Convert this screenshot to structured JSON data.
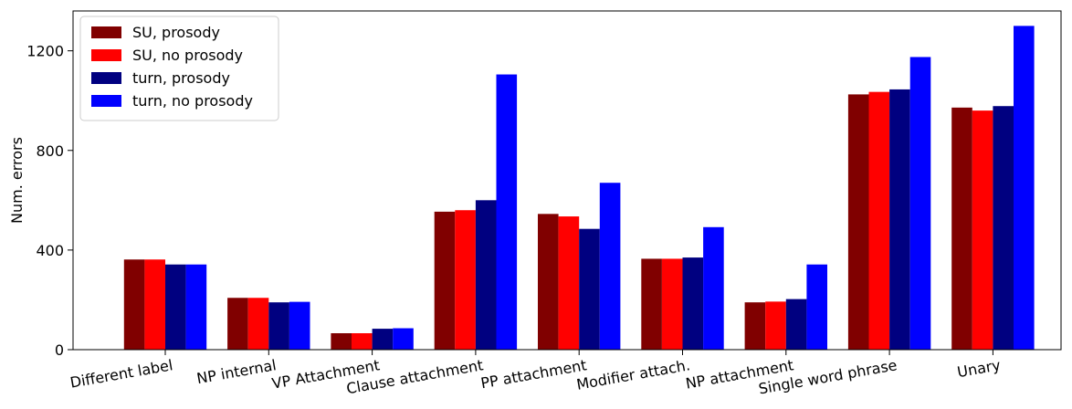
{
  "chart_data": {
    "type": "bar",
    "title": "",
    "xlabel": "",
    "ylabel": "Num. errors",
    "ylim": [
      0,
      1360
    ],
    "yticks": [
      0,
      400,
      800,
      1200
    ],
    "grid": false,
    "legend_position": "top-left",
    "categories": [
      "Different label",
      "NP internal",
      "VP Attachment",
      "Clause attachment",
      "PP attachment",
      "Modifier attach.",
      "NP attachment",
      "Single word phrase",
      "Unary"
    ],
    "series": [
      {
        "name": "SU, prosody",
        "color": "#800000",
        "values": [
          362,
          208,
          66,
          554,
          545,
          365,
          190,
          1025,
          972
        ]
      },
      {
        "name": "SU, no prosody",
        "color": "#ff0000",
        "values": [
          362,
          208,
          66,
          560,
          535,
          365,
          193,
          1035,
          960
        ]
      },
      {
        "name": "turn, prosody",
        "color": "#000080",
        "values": [
          342,
          190,
          84,
          600,
          485,
          370,
          203,
          1045,
          978
        ]
      },
      {
        "name": "turn, no prosody",
        "color": "#0000ff",
        "values": [
          342,
          192,
          86,
          1105,
          670,
          492,
          342,
          1175,
          1300
        ]
      }
    ]
  }
}
